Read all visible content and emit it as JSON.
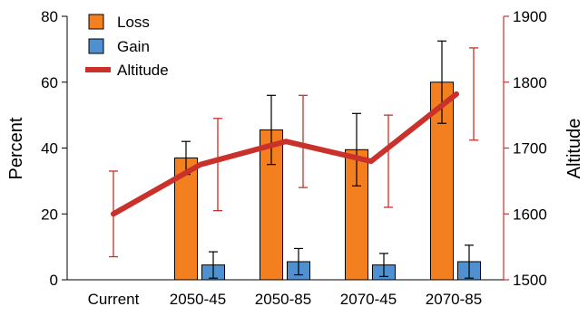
{
  "chart_data": {
    "type": "bar",
    "categories": [
      "Current",
      "2050-45",
      "2050-85",
      "2070-45",
      "2070-85"
    ],
    "series": [
      {
        "name": "Loss",
        "kind": "bar",
        "axis": "left",
        "color": "#F47F1F",
        "values": [
          null,
          37,
          45.5,
          39.5,
          60
        ],
        "errors": [
          null,
          5,
          10.5,
          11,
          12.5
        ]
      },
      {
        "name": "Gain",
        "kind": "bar",
        "axis": "left",
        "color": "#4F90D0",
        "values": [
          null,
          4.5,
          5.5,
          4.5,
          5.5
        ],
        "errors": [
          null,
          4,
          4,
          3.5,
          5
        ]
      },
      {
        "name": "Altitude",
        "kind": "line",
        "axis": "right",
        "color": "#C9312A",
        "values": [
          1600,
          1675,
          1710,
          1680,
          1782
        ],
        "errors": [
          65,
          70,
          70,
          70,
          70
        ]
      }
    ],
    "ylabel": "Percent",
    "ylim": [
      0,
      80
    ],
    "yticks": [
      0,
      20,
      40,
      60,
      80
    ],
    "y2label": "Altitude",
    "y2lim": [
      1500,
      1900
    ],
    "y2ticks": [
      1500,
      1600,
      1700,
      1800,
      1900
    ],
    "legend": [
      "Loss",
      "Gain",
      "Altitude"
    ],
    "legend_position": "top-left",
    "grid": false
  }
}
